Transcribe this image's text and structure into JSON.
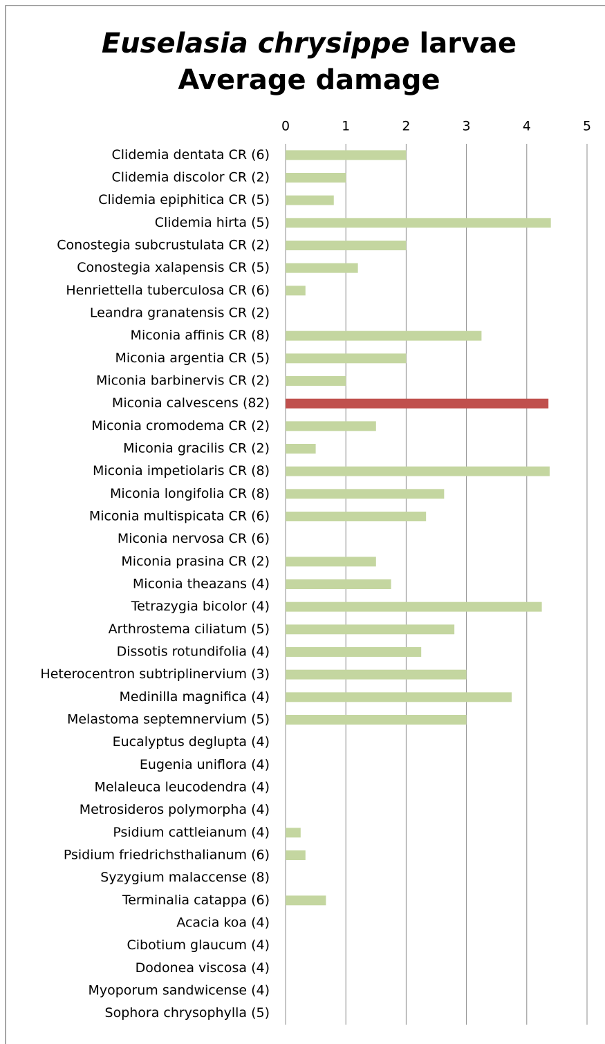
{
  "chart_data": {
    "type": "bar",
    "orientation": "horizontal",
    "title_italic": "Euselasia chrysippe",
    "title_rest": "larvae",
    "subtitle": "Average damage",
    "categories": [
      "Clidemia dentata CR (6)",
      "Clidemia discolor CR (2)",
      "Clidemia epiphitica CR (5)",
      "Clidemia hirta (5)",
      "Conostegia subcrustulata CR (2)",
      "Conostegia xalapensis CR (5)",
      "Henriettella tuberculosa CR (6)",
      "Leandra granatensis CR (2)",
      "Miconia affinis CR (8)",
      "Miconia argentia CR (5)",
      "Miconia barbinervis CR (2)",
      "Miconia calvescens (82)",
      "Miconia cromodema CR (2)",
      "Miconia gracilis CR (2)",
      "Miconia impetiolaris CR (8)",
      "Miconia longifolia CR (8)",
      "Miconia multispicata CR (6)",
      "Miconia nervosa CR (6)",
      "Miconia prasina CR (2)",
      "Miconia theazans (4)",
      "Tetrazygia bicolor (4)",
      "Arthrostema ciliatum (5)",
      "Dissotis rotundifolia (4)",
      "Heterocentron subtriplinervium (3)",
      "Medinilla magnifica (4)",
      "Melastoma septemnervium (5)",
      "Eucalyptus deglupta (4)",
      "Eugenia uniflora (4)",
      "Melaleuca leucodendra (4)",
      "Metrosideros polymorpha (4)",
      "Psidium cattleianum (4)",
      "Psidium friedrichsthalianum (6)",
      "Syzygium malaccense (8)",
      "Terminalia catappa (6)",
      "Acacia koa (4)",
      "Cibotium glaucum (4)",
      "Dodonea viscosa (4)",
      "Myoporum sandwicense (4)",
      "Sophora chrysophylla (5)"
    ],
    "values": [
      2,
      1,
      0.8,
      4.4,
      2,
      1.2,
      0.33,
      0,
      3.25,
      2,
      1,
      4.36,
      1.5,
      0.5,
      4.38,
      2.63,
      2.33,
      0,
      1.5,
      1.75,
      4.25,
      2.8,
      2.25,
      3,
      3.75,
      3,
      0,
      0,
      0,
      0,
      0.25,
      0.33,
      0,
      0.67,
      0,
      0,
      0,
      0,
      0
    ],
    "colors": [
      "#c4d6a0",
      "#c4d6a0",
      "#c4d6a0",
      "#c4d6a0",
      "#c4d6a0",
      "#c4d6a0",
      "#c4d6a0",
      "#c4d6a0",
      "#c4d6a0",
      "#c4d6a0",
      "#c4d6a0",
      "#c0504d",
      "#c4d6a0",
      "#c4d6a0",
      "#c4d6a0",
      "#c4d6a0",
      "#c4d6a0",
      "#c4d6a0",
      "#c4d6a0",
      "#c4d6a0",
      "#c4d6a0",
      "#c4d6a0",
      "#c4d6a0",
      "#c4d6a0",
      "#c4d6a0",
      "#c4d6a0",
      "#c4d6a0",
      "#c4d6a0",
      "#c4d6a0",
      "#c4d6a0",
      "#c4d6a0",
      "#c4d6a0",
      "#c4d6a0",
      "#c4d6a0",
      "#c4d6a0",
      "#c4d6a0",
      "#c4d6a0",
      "#c4d6a0",
      "#c4d6a0"
    ],
    "xlim": [
      0,
      5
    ],
    "xticks": [
      0,
      1,
      2,
      3,
      4,
      5
    ],
    "grid": true
  }
}
